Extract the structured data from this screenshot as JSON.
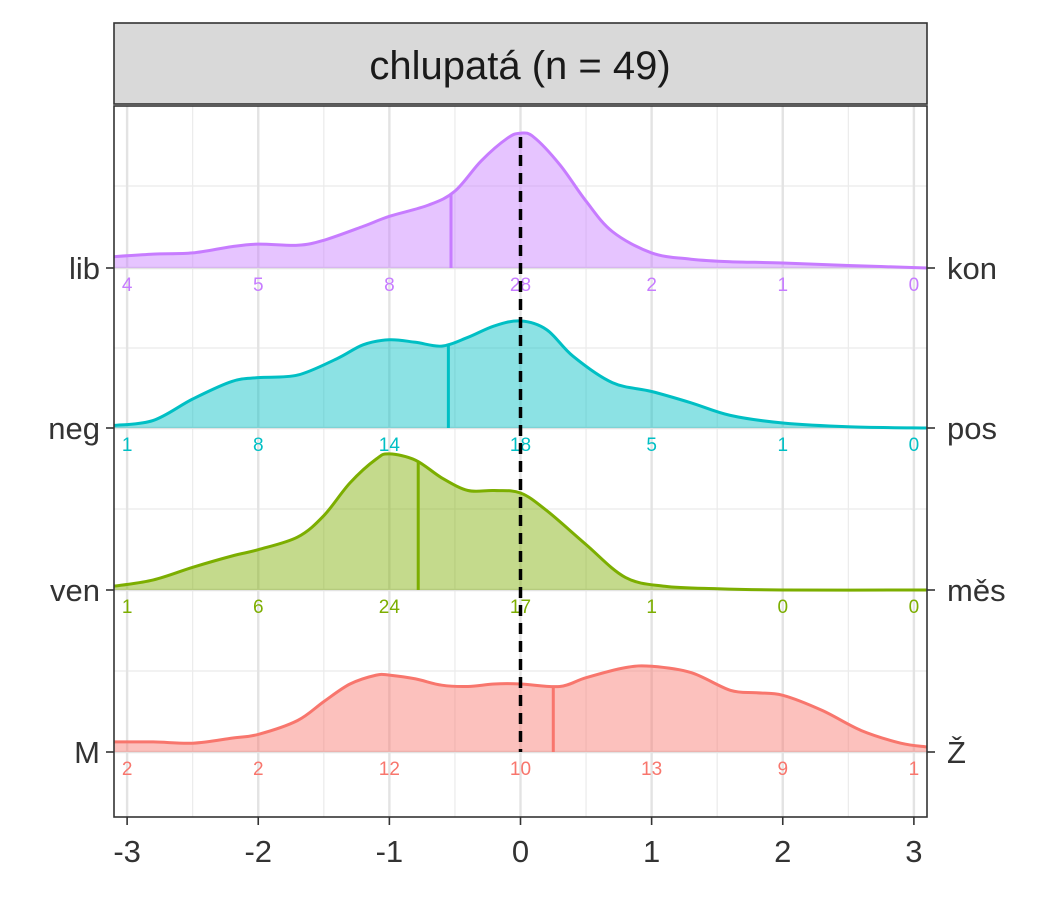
{
  "chart_data": {
    "type": "ridgeline",
    "title": "chlupatá (n = 49)",
    "xlabel": "",
    "ylabel": "",
    "xlim": [
      -3.1,
      3.1
    ],
    "x_ticks": [
      -3,
      -2,
      -1,
      0,
      1,
      2,
      3
    ],
    "x_tick_labels": [
      "-3",
      "-2",
      "-1",
      "0",
      "1",
      "2",
      "3"
    ],
    "reference_line": {
      "x": 0,
      "style": "dashed",
      "color": "#000000"
    },
    "grid": true,
    "categories": [
      -3,
      -2,
      -1,
      0,
      1,
      2,
      3
    ],
    "series": [
      {
        "left_label": "lib",
        "right_label": "kon",
        "color": "#C77CFF",
        "counts": [
          4,
          5,
          8,
          28,
          2,
          1,
          0
        ],
        "mean": -0.53,
        "density": [
          [
            -3.1,
            0.09
          ],
          [
            -2.8,
            0.11
          ],
          [
            -2.5,
            0.12
          ],
          [
            -2.2,
            0.17
          ],
          [
            -2.0,
            0.19
          ],
          [
            -1.7,
            0.18
          ],
          [
            -1.5,
            0.22
          ],
          [
            -1.2,
            0.33
          ],
          [
            -1.0,
            0.41
          ],
          [
            -0.7,
            0.5
          ],
          [
            -0.5,
            0.61
          ],
          [
            -0.3,
            0.85
          ],
          [
            -0.1,
            1.03
          ],
          [
            0.0,
            1.07
          ],
          [
            0.1,
            1.04
          ],
          [
            0.3,
            0.82
          ],
          [
            0.5,
            0.53
          ],
          [
            0.7,
            0.29
          ],
          [
            1.0,
            0.12
          ],
          [
            1.3,
            0.07
          ],
          [
            1.6,
            0.05
          ],
          [
            2.0,
            0.04
          ],
          [
            2.5,
            0.02
          ],
          [
            3.1,
            0.0
          ]
        ]
      },
      {
        "left_label": "neg",
        "right_label": "pos",
        "color": "#00BFC4",
        "counts": [
          1,
          8,
          14,
          18,
          5,
          1,
          0
        ],
        "mean": -0.55,
        "density": [
          [
            -3.1,
            0.02
          ],
          [
            -2.8,
            0.06
          ],
          [
            -2.5,
            0.23
          ],
          [
            -2.2,
            0.37
          ],
          [
            -2.0,
            0.4
          ],
          [
            -1.7,
            0.42
          ],
          [
            -1.4,
            0.55
          ],
          [
            -1.2,
            0.66
          ],
          [
            -1.0,
            0.7
          ],
          [
            -0.8,
            0.68
          ],
          [
            -0.6,
            0.65
          ],
          [
            -0.4,
            0.72
          ],
          [
            -0.2,
            0.81
          ],
          [
            0.0,
            0.85
          ],
          [
            0.2,
            0.78
          ],
          [
            0.4,
            0.57
          ],
          [
            0.7,
            0.36
          ],
          [
            1.0,
            0.29
          ],
          [
            1.3,
            0.2
          ],
          [
            1.6,
            0.1
          ],
          [
            2.0,
            0.04
          ],
          [
            2.5,
            0.01
          ],
          [
            3.1,
            0.0
          ]
        ]
      },
      {
        "left_label": "ven",
        "right_label": "měs",
        "color": "#7CAE00",
        "counts": [
          1,
          6,
          24,
          17,
          1,
          0,
          0
        ],
        "mean": -0.78,
        "density": [
          [
            -3.1,
            0.03
          ],
          [
            -2.8,
            0.08
          ],
          [
            -2.5,
            0.18
          ],
          [
            -2.2,
            0.27
          ],
          [
            -2.0,
            0.32
          ],
          [
            -1.7,
            0.42
          ],
          [
            -1.5,
            0.59
          ],
          [
            -1.3,
            0.85
          ],
          [
            -1.1,
            1.04
          ],
          [
            -1.0,
            1.08
          ],
          [
            -0.8,
            1.03
          ],
          [
            -0.6,
            0.89
          ],
          [
            -0.4,
            0.79
          ],
          [
            -0.2,
            0.79
          ],
          [
            0.0,
            0.77
          ],
          [
            0.2,
            0.63
          ],
          [
            0.5,
            0.36
          ],
          [
            0.8,
            0.1
          ],
          [
            1.1,
            0.03
          ],
          [
            1.5,
            0.01
          ],
          [
            2.0,
            0.0
          ],
          [
            3.1,
            0.0
          ]
        ]
      },
      {
        "left_label": "M",
        "right_label": "Ž",
        "color": "#F8766D",
        "counts": [
          2,
          2,
          12,
          10,
          13,
          9,
          1
        ],
        "mean": 0.25,
        "density": [
          [
            -3.1,
            0.08
          ],
          [
            -2.8,
            0.08
          ],
          [
            -2.5,
            0.07
          ],
          [
            -2.2,
            0.11
          ],
          [
            -2.0,
            0.14
          ],
          [
            -1.7,
            0.25
          ],
          [
            -1.5,
            0.4
          ],
          [
            -1.3,
            0.54
          ],
          [
            -1.1,
            0.61
          ],
          [
            -1.0,
            0.61
          ],
          [
            -0.8,
            0.58
          ],
          [
            -0.6,
            0.53
          ],
          [
            -0.4,
            0.52
          ],
          [
            -0.2,
            0.54
          ],
          [
            0.0,
            0.54
          ],
          [
            0.3,
            0.52
          ],
          [
            0.5,
            0.59
          ],
          [
            0.8,
            0.67
          ],
          [
            1.0,
            0.68
          ],
          [
            1.3,
            0.63
          ],
          [
            1.6,
            0.49
          ],
          [
            1.8,
            0.47
          ],
          [
            2.0,
            0.45
          ],
          [
            2.3,
            0.33
          ],
          [
            2.6,
            0.17
          ],
          [
            2.9,
            0.07
          ],
          [
            3.1,
            0.04
          ]
        ]
      }
    ]
  }
}
